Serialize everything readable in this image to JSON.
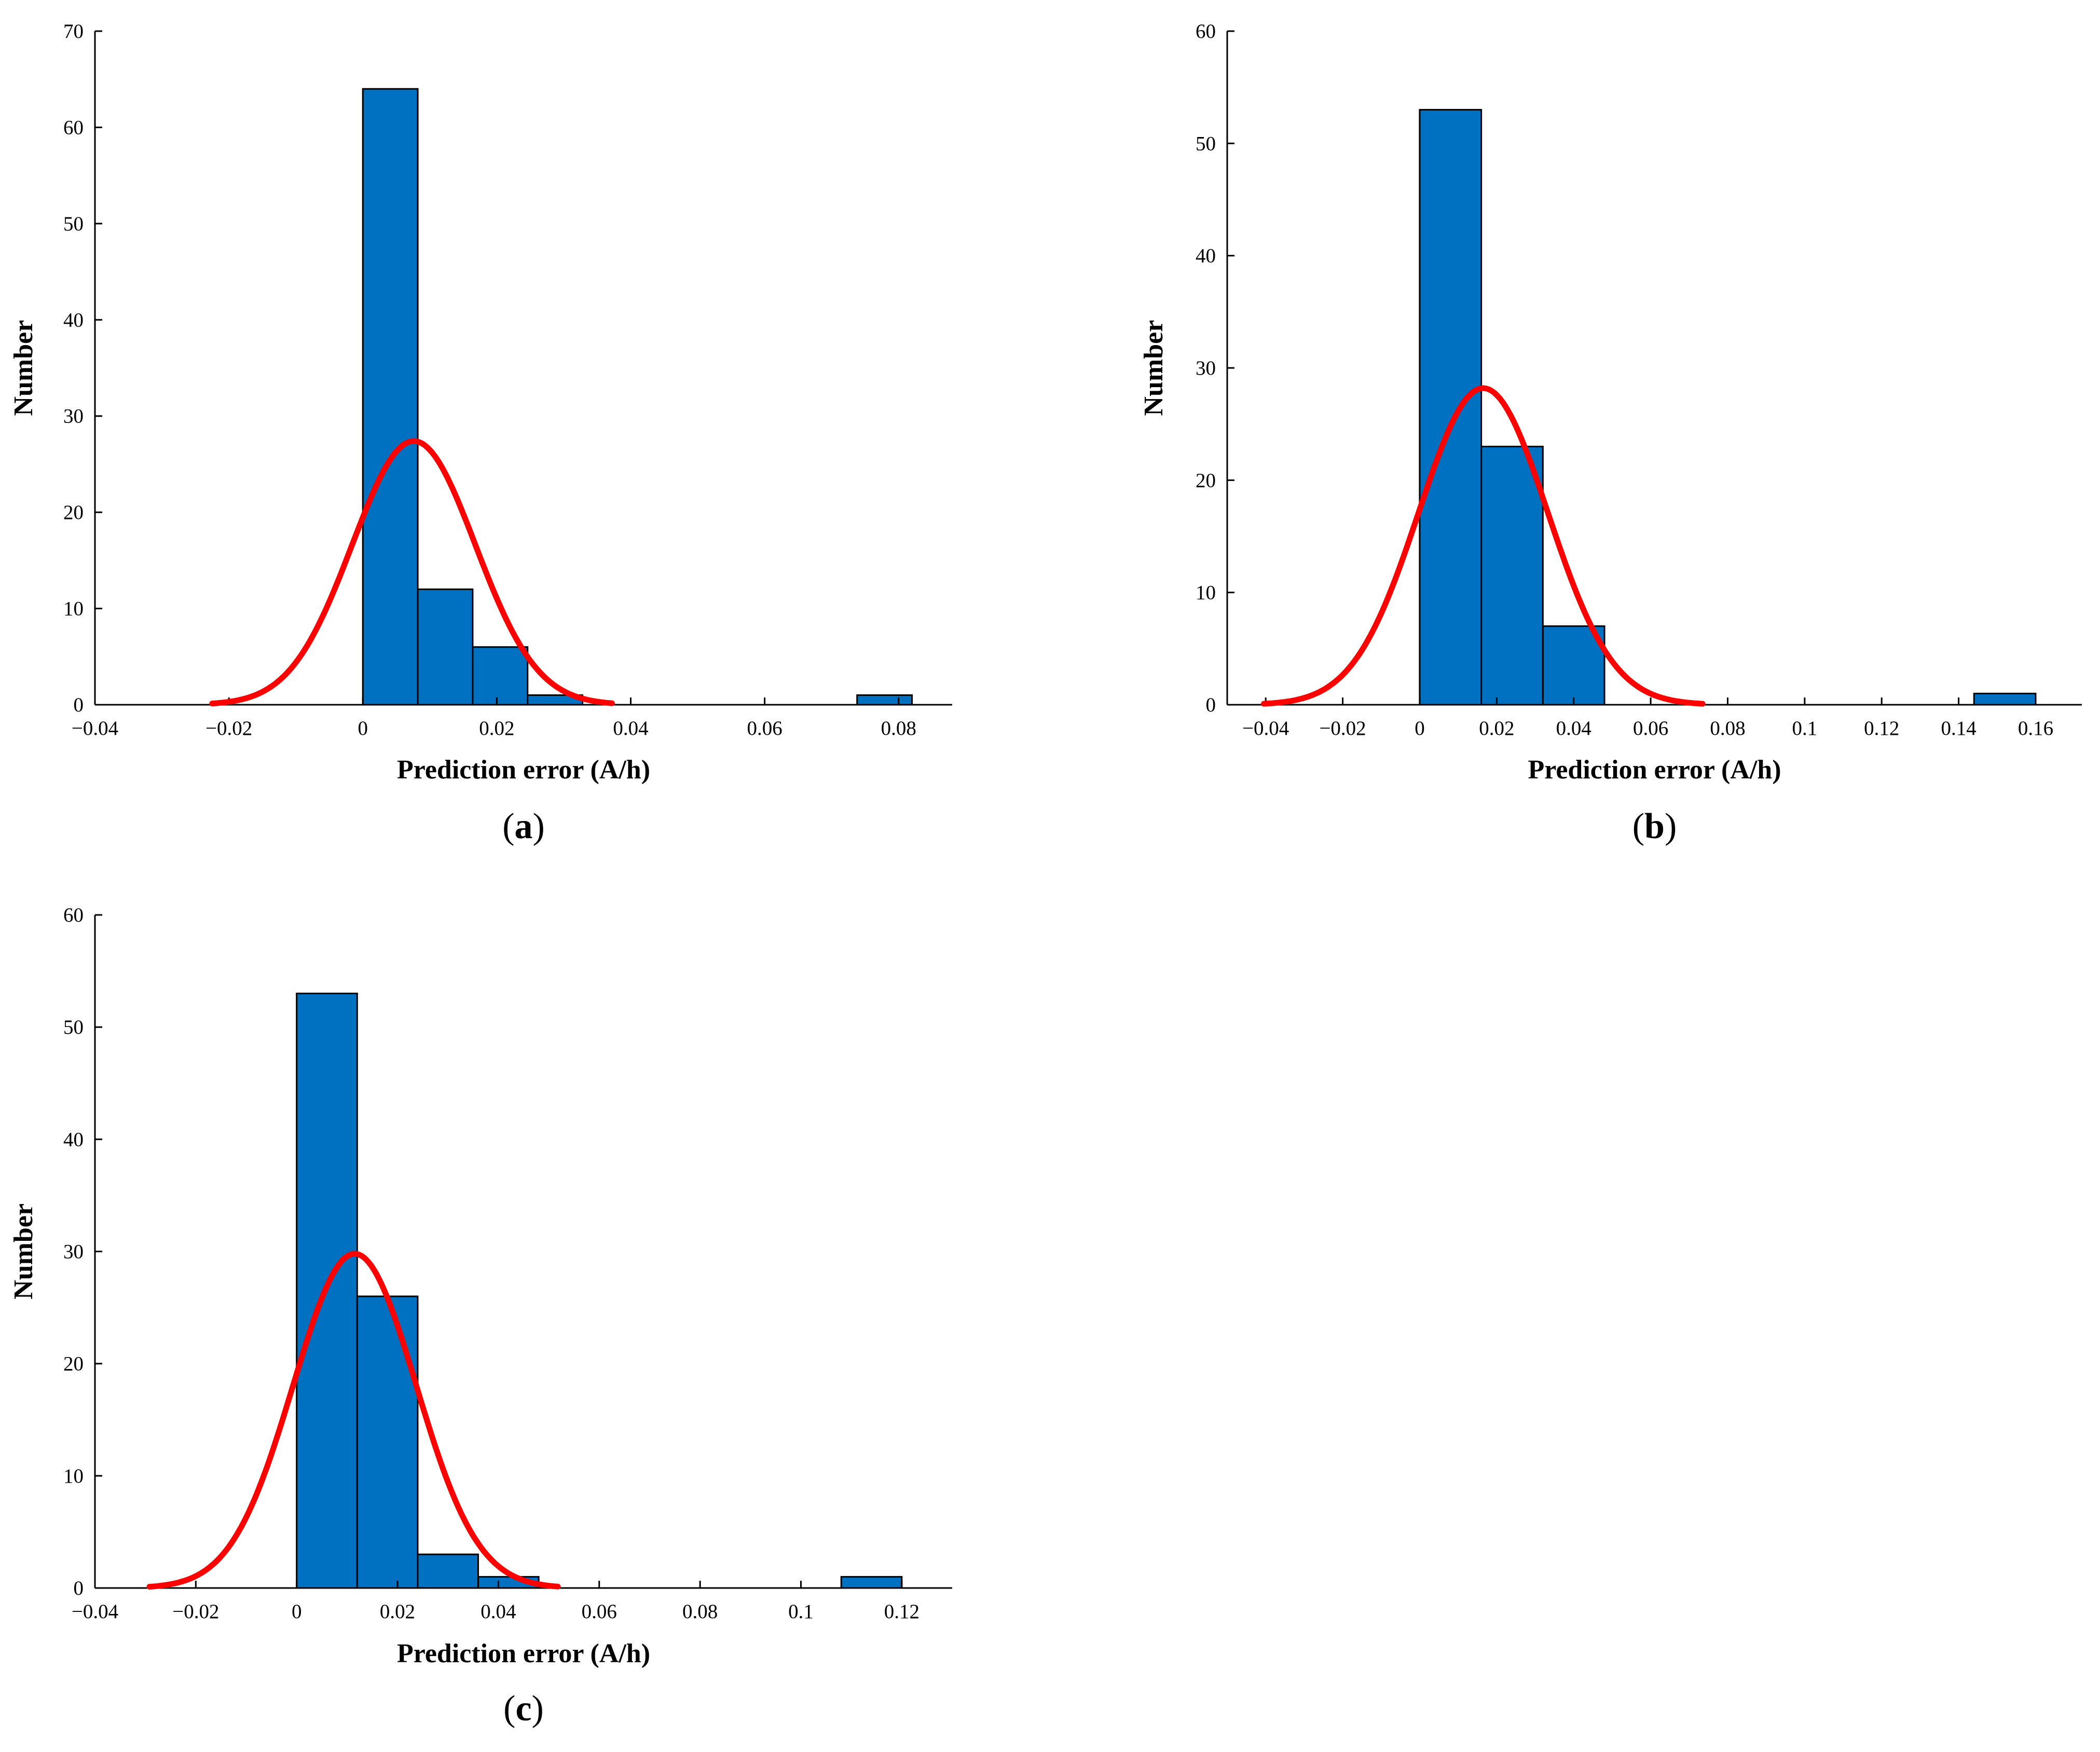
{
  "colors": {
    "bar": "#0070C0",
    "bar_edge": "#000000",
    "fit": "#FF0000",
    "axis": "#000000"
  },
  "chart_data": [
    {
      "id": "a",
      "type": "bar",
      "caption_open": "(",
      "caption_letter": "a",
      "caption_close": ")",
      "xlabel": "Prediction error (A/h)",
      "ylabel": "Number",
      "xlim": [
        -0.04,
        0.088
      ],
      "ylim": [
        0,
        70
      ],
      "xticks": [
        -0.04,
        -0.02,
        0,
        0.02,
        0.04,
        0.06,
        0.08
      ],
      "xtick_labels": [
        "−0.04",
        "−0.02",
        "0",
        "0.02",
        "0.04",
        "0.06",
        "0.08"
      ],
      "yticks": [
        0,
        10,
        20,
        30,
        40,
        50,
        60,
        70
      ],
      "ytick_labels": [
        "0",
        "10",
        "20",
        "30",
        "40",
        "50",
        "60",
        "70"
      ],
      "bins": [
        {
          "x0": 0.0,
          "x1": 0.0082,
          "value": 64
        },
        {
          "x0": 0.0082,
          "x1": 0.0164,
          "value": 12
        },
        {
          "x0": 0.0164,
          "x1": 0.0246,
          "value": 6
        },
        {
          "x0": 0.0246,
          "x1": 0.0328,
          "value": 1
        },
        {
          "x0": 0.0738,
          "x1": 0.082,
          "value": 1
        }
      ],
      "fit": {
        "mean": 0.0076,
        "sigma": 0.0092,
        "peak": 27.4,
        "x_from": -0.0225,
        "x_to": 0.0372
      }
    },
    {
      "id": "b",
      "type": "bar",
      "caption_open": "(",
      "caption_letter": "b",
      "caption_close": ")",
      "xlabel": "Prediction error (A/h)",
      "ylabel": "Number",
      "xlim": [
        -0.05,
        0.172
      ],
      "ylim": [
        0,
        60
      ],
      "xticks": [
        -0.04,
        -0.02,
        0,
        0.02,
        0.04,
        0.06,
        0.08,
        0.1,
        0.12,
        0.14,
        0.16
      ],
      "xtick_labels": [
        "−0.04",
        "−0.02",
        "0",
        "0.02",
        "0.04",
        "0.06",
        "0.08",
        "0.1",
        "0.12",
        "0.14",
        "0.16"
      ],
      "yticks": [
        0,
        10,
        20,
        30,
        40,
        50,
        60
      ],
      "ytick_labels": [
        "0",
        "10",
        "20",
        "30",
        "40",
        "50",
        "60"
      ],
      "bins": [
        {
          "x0": 0.0,
          "x1": 0.016,
          "value": 53
        },
        {
          "x0": 0.016,
          "x1": 0.032,
          "value": 23
        },
        {
          "x0": 0.032,
          "x1": 0.048,
          "value": 7
        },
        {
          "x0": 0.144,
          "x1": 0.16,
          "value": 1
        }
      ],
      "fit": {
        "mean": 0.0165,
        "sigma": 0.0168,
        "peak": 28.2,
        "x_from": -0.0405,
        "x_to": 0.0735
      }
    },
    {
      "id": "c",
      "type": "bar",
      "caption_open": "(",
      "caption_letter": "c",
      "caption_close": ")",
      "xlabel": "Prediction error (A/h)",
      "ylabel": "Number",
      "xlim": [
        -0.04,
        0.13
      ],
      "ylim": [
        0,
        60
      ],
      "xticks": [
        -0.04,
        -0.02,
        0,
        0.02,
        0.04,
        0.06,
        0.08,
        0.1,
        0.12
      ],
      "xtick_labels": [
        "−0.04",
        "−0.02",
        "0",
        "0.02",
        "0.04",
        "0.06",
        "0.08",
        "0.1",
        "0.12"
      ],
      "yticks": [
        0,
        10,
        20,
        30,
        40,
        50,
        60
      ],
      "ytick_labels": [
        "0",
        "10",
        "20",
        "30",
        "40",
        "50",
        "60"
      ],
      "bins": [
        {
          "x0": 0.0,
          "x1": 0.012,
          "value": 53
        },
        {
          "x0": 0.012,
          "x1": 0.024,
          "value": 26
        },
        {
          "x0": 0.024,
          "x1": 0.036,
          "value": 3
        },
        {
          "x0": 0.036,
          "x1": 0.048,
          "value": 1
        },
        {
          "x0": 0.108,
          "x1": 0.12,
          "value": 1
        }
      ],
      "fit": {
        "mean": 0.0115,
        "sigma": 0.0122,
        "peak": 29.8,
        "x_from": -0.0292,
        "x_to": 0.0518
      }
    }
  ]
}
